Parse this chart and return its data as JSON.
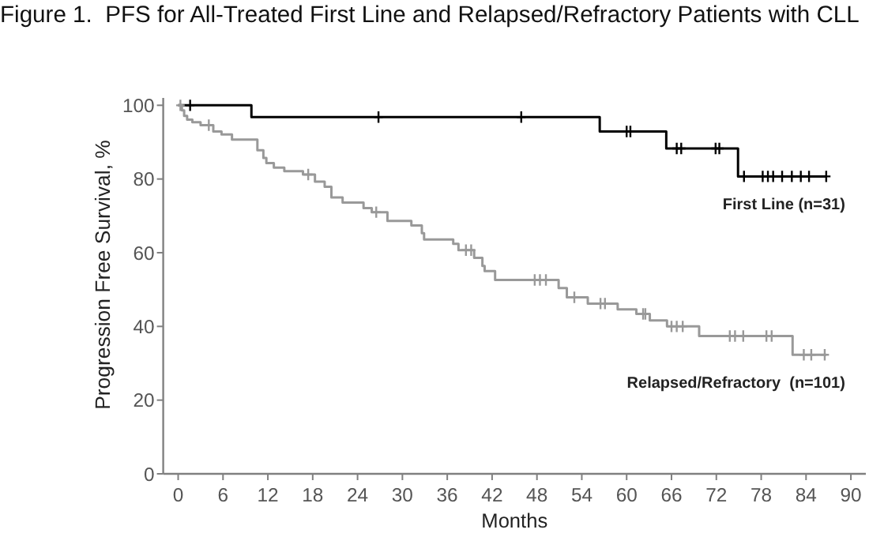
{
  "chart_data": {
    "type": "step",
    "title": "Figure 1.  PFS for All-Treated First Line and Relapsed/Refractory Patients with CLL",
    "xlabel": "Months",
    "ylabel": "Progression Free Survival, %",
    "xlim": [
      -2,
      92
    ],
    "ylim": [
      0,
      102
    ],
    "xticks": [
      0,
      6,
      12,
      18,
      24,
      30,
      36,
      42,
      48,
      54,
      60,
      66,
      72,
      78,
      84,
      90
    ],
    "yticks": [
      0,
      20,
      40,
      60,
      80,
      100
    ],
    "series": [
      {
        "name": "First Line (n=31)",
        "color": "#000000",
        "x": [
          0,
          9.8,
          56.4,
          65.3,
          74.9,
          86.7
        ],
        "values": [
          100,
          96.8,
          92.9,
          88.3,
          80.7,
          80.7
        ]
      },
      {
        "name": "Relapsed/Refractory  (n=101)",
        "color": "#999999",
        "x": [
          0,
          0.5,
          0.8,
          1.2,
          1.9,
          3.0,
          4.7,
          5.8,
          7.2,
          10.6,
          11.4,
          11.8,
          12.8,
          14.2,
          16.7,
          18.3,
          19.6,
          20.5,
          22.0,
          24.8,
          25.9,
          28.0,
          31.2,
          32.6,
          32.9,
          36.8,
          37.5,
          39.6,
          40.7,
          41.0,
          42.4,
          50.9,
          52.0,
          54.8,
          58.8,
          61.3,
          63.1,
          65.4,
          69.7,
          82.2,
          86.7
        ],
        "values": [
          100,
          98.6,
          97.1,
          96.1,
          95.4,
          94.6,
          92.9,
          92.1,
          90.7,
          87.8,
          85.7,
          84.3,
          83.1,
          82.1,
          81.2,
          79.3,
          77.9,
          75.0,
          73.6,
          72.1,
          71.0,
          68.6,
          67.4,
          65.3,
          63.6,
          62.4,
          60.7,
          58.6,
          56.4,
          55.0,
          52.6,
          50.4,
          47.9,
          46.2,
          44.6,
          43.4,
          41.6,
          40.0,
          37.4,
          32.3,
          32.3
        ]
      },
      {
        "type": "scatter",
        "marker": "cross",
        "color": "#000000",
        "x": [
          1.6,
          26.8,
          45.9,
          60.0,
          60.5,
          66.7,
          67.3,
          71.9,
          72.4,
          75.7,
          78.2,
          78.9,
          79.6,
          80.8,
          82.1,
          83.3,
          84.4,
          86.7
        ],
        "values": [
          100,
          96.8,
          96.8,
          92.9,
          92.9,
          88.3,
          88.3,
          88.3,
          88.3,
          80.7,
          80.7,
          80.7,
          80.7,
          80.7,
          80.7,
          80.7,
          80.7,
          80.7
        ]
      },
      {
        "type": "scatter",
        "marker": "cross",
        "color": "#999999",
        "x": [
          0.3,
          4.1,
          17.4,
          26.5,
          38.5,
          39.2,
          47.7,
          48.4,
          49.2,
          53.0,
          56.5,
          57.1,
          62.2,
          62.5,
          66.0,
          66.7,
          67.5,
          73.8,
          74.5,
          75.6,
          78.7,
          79.4,
          83.7,
          84.7,
          86.5
        ],
        "values": [
          100,
          94.6,
          81.2,
          71.0,
          60.7,
          60.7,
          52.6,
          52.6,
          52.6,
          47.9,
          46.2,
          46.2,
          43.4,
          43.4,
          40.0,
          40.0,
          40.0,
          37.4,
          37.4,
          37.4,
          37.4,
          37.4,
          32.3,
          32.3,
          32.3
        ]
      }
    ]
  }
}
